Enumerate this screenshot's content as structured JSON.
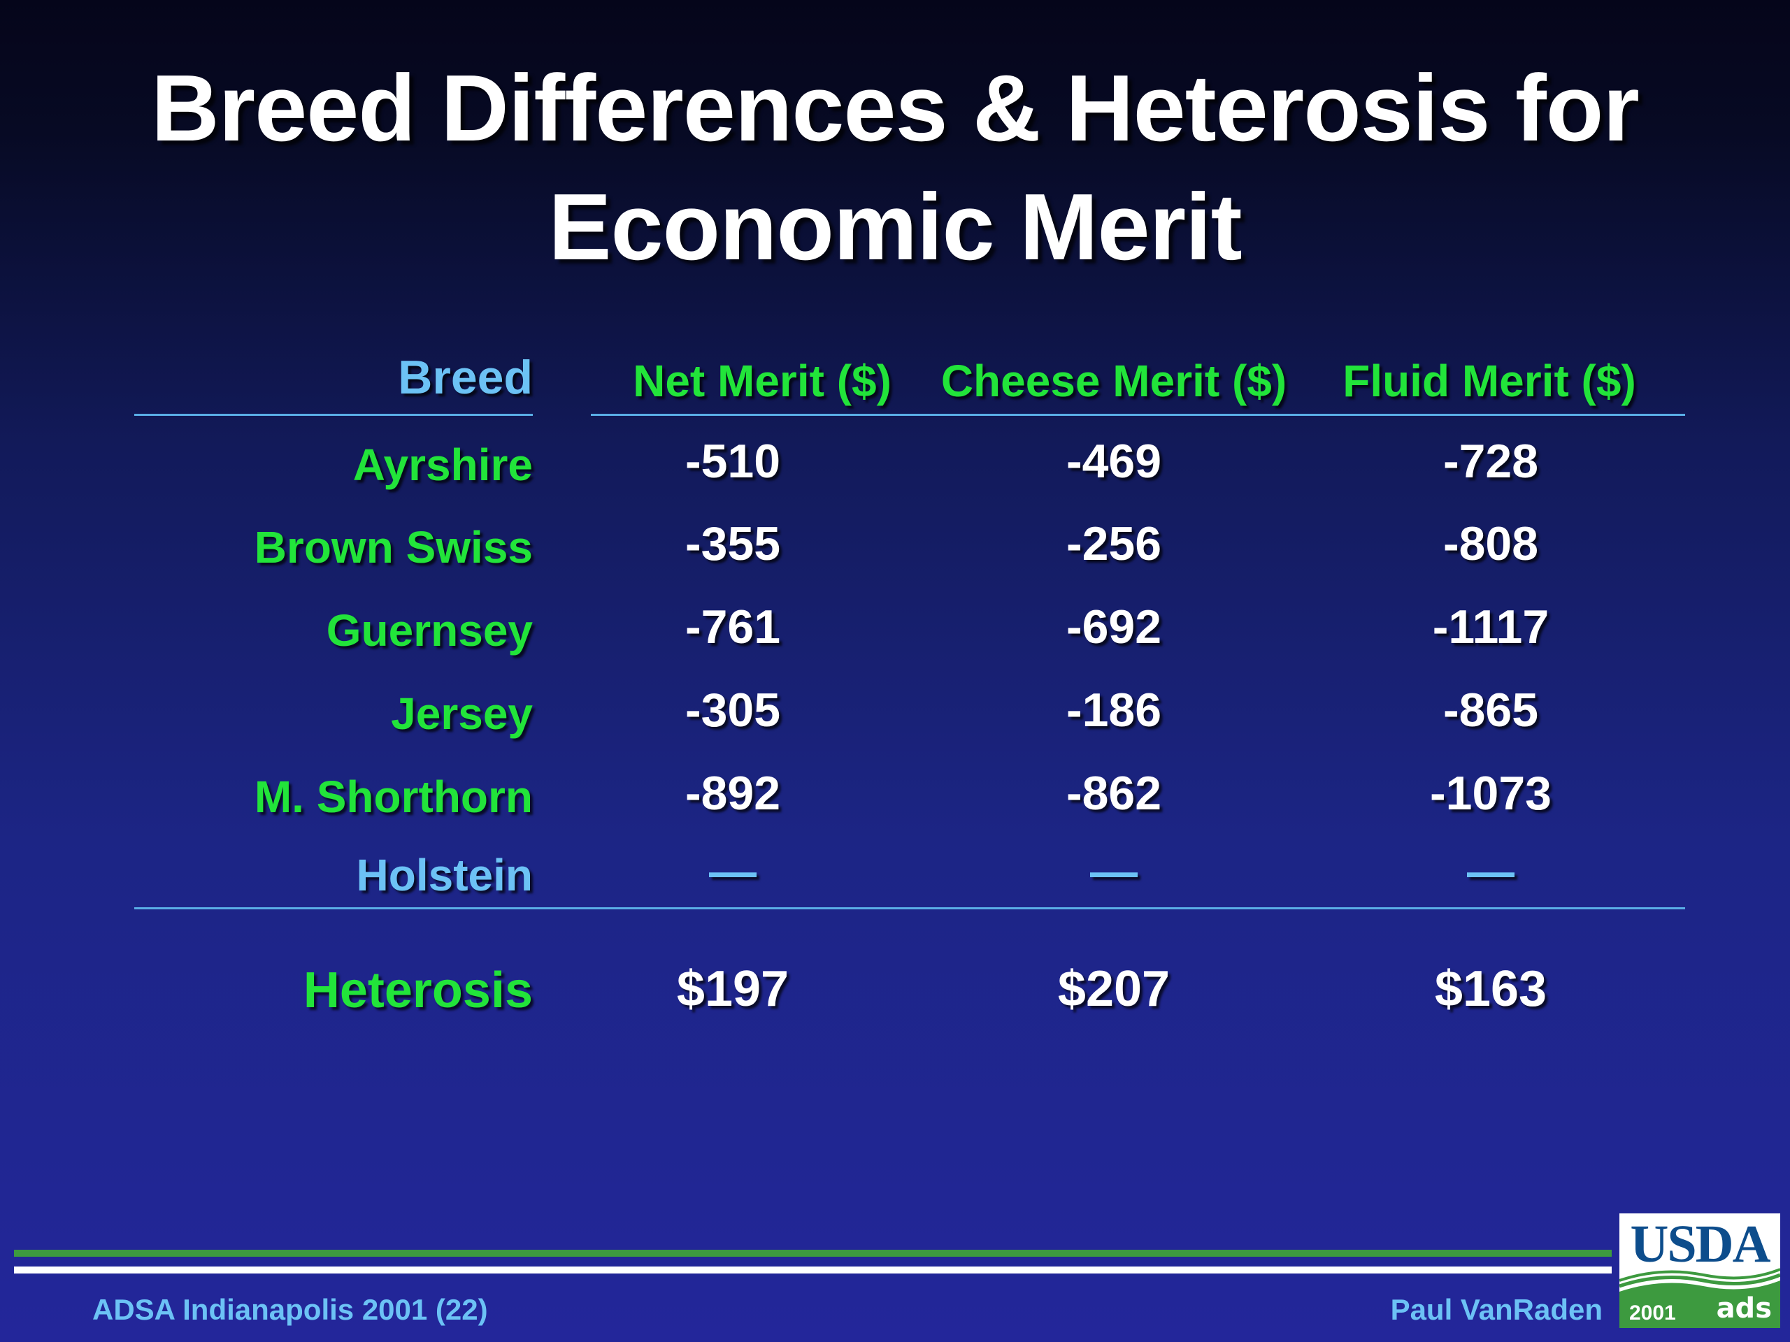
{
  "slide": {
    "title_line1": "Breed Differences & Heterosis for",
    "title_line2": "Economic Merit"
  },
  "table": {
    "columns": [
      "Breed",
      "Net Merit ($)",
      "Cheese Merit ($)",
      "Fluid Merit ($)"
    ],
    "rows": [
      {
        "breed": "Ayrshire",
        "net": "-510",
        "cheese": "-469",
        "fluid": "-728"
      },
      {
        "breed": "Brown Swiss",
        "net": "-355",
        "cheese": "-256",
        "fluid": "-808"
      },
      {
        "breed": "Guernsey",
        "net": "-761",
        "cheese": "-692",
        "fluid": "-1117"
      },
      {
        "breed": "Jersey",
        "net": "-305",
        "cheese": "-186",
        "fluid": "-865"
      },
      {
        "breed": "M. Shorthorn",
        "net": "-892",
        "cheese": "-862",
        "fluid": "-1073"
      },
      {
        "breed": "Holstein",
        "net": "—",
        "cheese": "—",
        "fluid": "—"
      }
    ],
    "heterosis": {
      "label": "Heterosis",
      "net": "$197",
      "cheese": "$207",
      "fluid": "$163"
    }
  },
  "footer": {
    "left": "ADSA Indianapolis 2001 (22)",
    "right": "Paul VanRaden"
  },
  "logo": {
    "text": "USDA",
    "year": "2001",
    "mark": "ads",
    "colors": {
      "navy": "#0d4d8c",
      "green": "#3d9a3f"
    }
  },
  "colors": {
    "heading_green": "#22e43a",
    "light_blue": "#6cc2f5",
    "value_white": "#ffffff"
  }
}
